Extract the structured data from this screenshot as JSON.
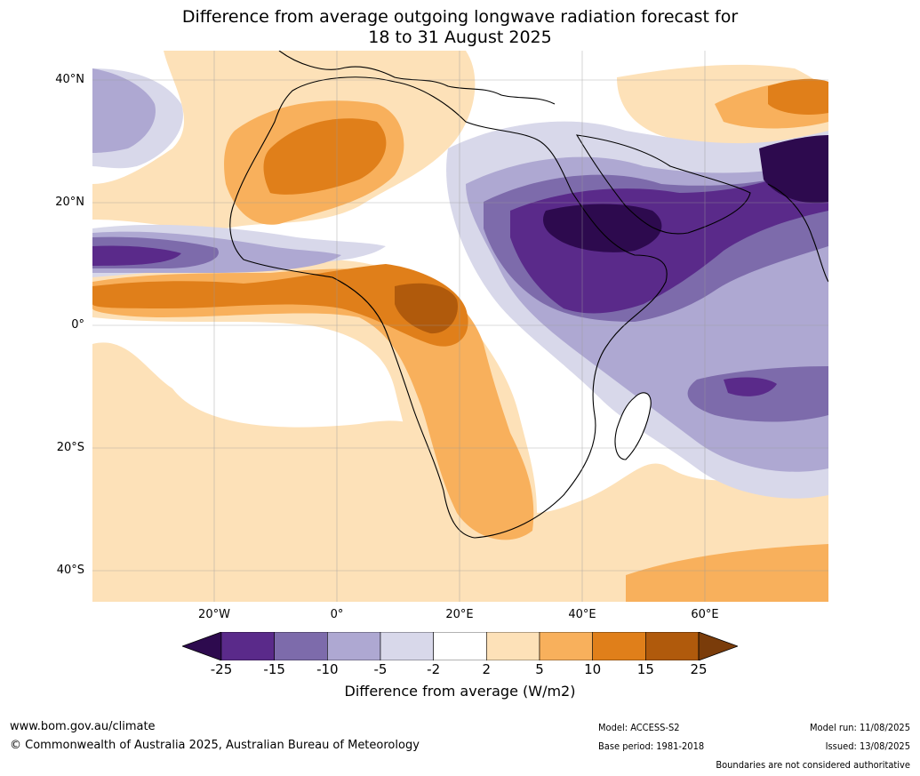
{
  "title_line1": "Difference from average outgoing longwave radiation forecast for",
  "title_line2": "18 to 31 August 2025",
  "lat_labels": [
    "40°N",
    "20°N",
    "0°",
    "20°S",
    "40°S"
  ],
  "lon_labels": [
    "20°W",
    "0°",
    "20°E",
    "40°E",
    "60°E"
  ],
  "colorbar": {
    "ticks": [
      "-25",
      "-15",
      "-10",
      "-5",
      "-2",
      "2",
      "5",
      "10",
      "15",
      "25"
    ],
    "colors": [
      "#2d0a4e",
      "#5a2a8a",
      "#7d6bab",
      "#aea8d2",
      "#d8d8ea",
      "#ffffff",
      "#fde1b8",
      "#f8b05c",
      "#e07f1a",
      "#b05a0c",
      "#7a3c0a"
    ],
    "title": "Difference from average (W/m2)"
  },
  "footer": {
    "url": "www.bom.gov.au/climate",
    "copyright": "© Commonwealth of Australia 2025, Australian Bureau of Meteorology",
    "model": "Model: ACCESS-S2",
    "base_period": "Base period: 1981-2018",
    "model_run": "Model run: 11/08/2025",
    "issued": "Issued: 13/08/2025",
    "disclaimer": "Boundaries are not considered authoritative"
  }
}
